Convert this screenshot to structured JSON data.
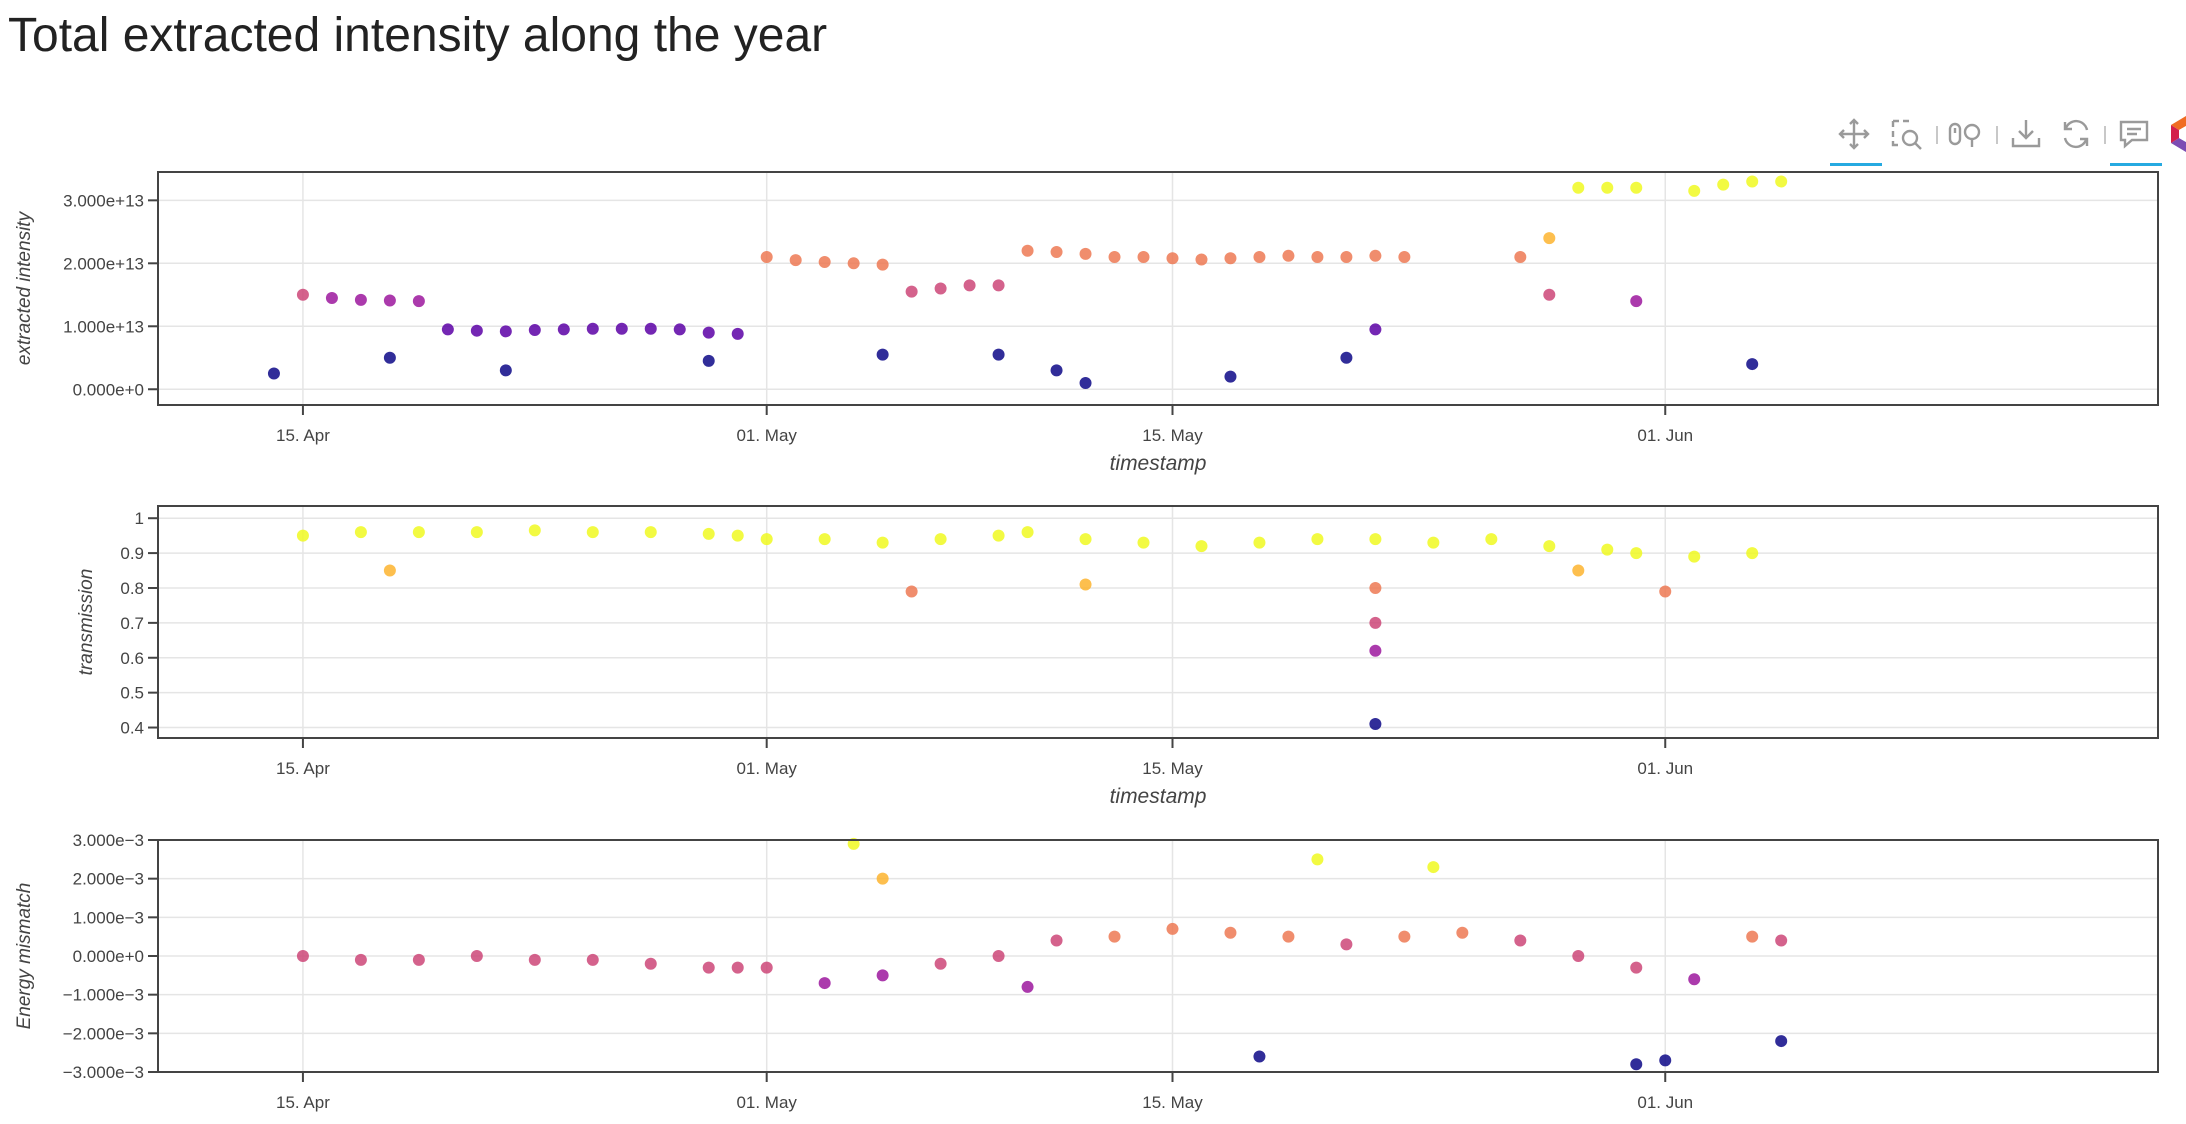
{
  "page": {
    "title": "Total extracted intensity along the year"
  },
  "toolbar": {
    "tools": [
      {
        "name": "pan-tool-icon",
        "label": "Pan",
        "active": true
      },
      {
        "name": "box-zoom-tool-icon",
        "label": "Box Zoom",
        "active": false
      },
      {
        "name": "wheel-zoom-tool-icon",
        "label": "Wheel Zoom",
        "active": false
      },
      {
        "name": "save-tool-icon",
        "label": "Save",
        "active": false
      },
      {
        "name": "reset-tool-icon",
        "label": "Reset",
        "active": false
      },
      {
        "name": "hover-tool-icon",
        "label": "Hover",
        "active": true
      },
      {
        "name": "bokeh-logo-icon",
        "label": "Bokeh",
        "active": false
      }
    ]
  },
  "colors": {
    "grid": "#e5e5e5",
    "axis": "#444444",
    "palette": [
      "#0d0887",
      "#5c01a6",
      "#9c179e",
      "#cc4778",
      "#ed7953",
      "#fdb42f",
      "#f0f921"
    ]
  },
  "chart_data": [
    {
      "type": "scatter",
      "xlabel": "timestamp",
      "ylabel": "extracted intensity",
      "x_ticks": [
        "15. Apr",
        "01. May",
        "15. May",
        "01. Jun"
      ],
      "y_ticks": [
        "0.000e+0",
        "1.000e+13",
        "2.000e+13",
        "3.000e+13"
      ],
      "y_tick_values": [
        0,
        10000000000000.0,
        20000000000000.0,
        30000000000000.0
      ],
      "ylim": [
        -2500000000000.0,
        34500000000000.0
      ],
      "xlim": [
        "2023-04-10",
        "2023-06-18"
      ],
      "series": [
        {
          "points": [
            [
              "04-15",
              15000000000000.0
            ],
            [
              "04-16",
              14500000000000.0
            ],
            [
              "04-17",
              14200000000000.0
            ],
            [
              "04-18",
              14100000000000.0
            ],
            [
              "04-19",
              14000000000000.0
            ],
            [
              "04-20",
              9500000000000.0
            ],
            [
              "04-21",
              9300000000000.0
            ],
            [
              "04-22",
              9200000000000.0
            ],
            [
              "04-23",
              9400000000000.0
            ],
            [
              "04-24",
              9500000000000.0
            ],
            [
              "04-25",
              9600000000000.0
            ],
            [
              "04-26",
              9600000000000.0
            ],
            [
              "04-27",
              9600000000000.0
            ],
            [
              "04-28",
              9500000000000.0
            ],
            [
              "04-29",
              9000000000000.0
            ],
            [
              "04-30",
              8800000000000.0
            ],
            [
              "05-01",
              21000000000000.0
            ],
            [
              "05-02",
              20500000000000.0
            ],
            [
              "05-03",
              20200000000000.0
            ],
            [
              "05-04",
              20000000000000.0
            ],
            [
              "05-05",
              19800000000000.0
            ],
            [
              "05-06",
              15500000000000.0
            ],
            [
              "05-07",
              16000000000000.0
            ],
            [
              "05-08",
              16500000000000.0
            ],
            [
              "05-09",
              16500000000000.0
            ],
            [
              "05-10",
              22000000000000.0
            ],
            [
              "05-11",
              21800000000000.0
            ],
            [
              "05-12",
              21500000000000.0
            ],
            [
              "05-13",
              21000000000000.0
            ],
            [
              "05-14",
              21000000000000.0
            ],
            [
              "05-15",
              20800000000000.0
            ],
            [
              "05-16",
              20600000000000.0
            ],
            [
              "05-17",
              20800000000000.0
            ],
            [
              "05-18",
              21000000000000.0
            ],
            [
              "05-19",
              21200000000000.0
            ],
            [
              "05-20",
              21000000000000.0
            ],
            [
              "05-21",
              21000000000000.0
            ],
            [
              "05-22",
              21200000000000.0
            ],
            [
              "05-23",
              21000000000000.0
            ],
            [
              "05-27",
              21000000000000.0
            ],
            [
              "05-28",
              24000000000000.0
            ],
            [
              "05-29",
              32000000000000.0
            ],
            [
              "05-30",
              32000000000000.0
            ],
            [
              "05-31",
              32000000000000.0
            ],
            [
              "06-02",
              31500000000000.0
            ],
            [
              "06-03",
              32500000000000.0
            ],
            [
              "06-04",
              33000000000000.0
            ],
            [
              "06-05",
              33000000000000.0
            ],
            [
              "04-14",
              2500000000000.0
            ],
            [
              "04-18",
              5000000000000.0
            ],
            [
              "04-22",
              3000000000000.0
            ],
            [
              "04-29",
              4500000000000.0
            ],
            [
              "05-05",
              5500000000000.0
            ],
            [
              "05-09",
              5500000000000.0
            ],
            [
              "05-11",
              3000000000000.0
            ],
            [
              "05-12",
              1000000000000.0
            ],
            [
              "05-17",
              2000000000000.0
            ],
            [
              "05-21",
              5000000000000.0
            ],
            [
              "05-22",
              9500000000000.0
            ],
            [
              "05-28",
              15000000000000.0
            ],
            [
              "05-31",
              14000000000000.0
            ],
            [
              "06-04",
              4000000000000.0
            ]
          ]
        }
      ]
    },
    {
      "type": "scatter",
      "xlabel": "timestamp",
      "ylabel": "transmission",
      "x_ticks": [
        "15. Apr",
        "01. May",
        "15. May",
        "01. Jun"
      ],
      "y_ticks": [
        "0.4",
        "0.5",
        "0.6",
        "0.7",
        "0.8",
        "0.9",
        "1"
      ],
      "y_tick_values": [
        0.4,
        0.5,
        0.6,
        0.7,
        0.8,
        0.9,
        1.0
      ],
      "ylim": [
        0.37,
        1.035
      ],
      "xlim": [
        "2023-04-10",
        "2023-06-18"
      ],
      "series": [
        {
          "points": [
            [
              "04-15",
              0.95
            ],
            [
              "04-17",
              0.96
            ],
            [
              "04-19",
              0.96
            ],
            [
              "04-21",
              0.96
            ],
            [
              "04-23",
              0.965
            ],
            [
              "04-25",
              0.96
            ],
            [
              "04-27",
              0.96
            ],
            [
              "04-29",
              0.955
            ],
            [
              "04-30",
              0.95
            ],
            [
              "05-01",
              0.94
            ],
            [
              "05-03",
              0.94
            ],
            [
              "05-05",
              0.93
            ],
            [
              "05-07",
              0.94
            ],
            [
              "05-09",
              0.95
            ],
            [
              "05-10",
              0.96
            ],
            [
              "05-12",
              0.94
            ],
            [
              "05-14",
              0.93
            ],
            [
              "05-16",
              0.92
            ],
            [
              "05-18",
              0.93
            ],
            [
              "05-20",
              0.94
            ],
            [
              "05-22",
              0.94
            ],
            [
              "05-24",
              0.93
            ],
            [
              "05-26",
              0.94
            ],
            [
              "05-28",
              0.92
            ],
            [
              "05-30",
              0.91
            ],
            [
              "05-31",
              0.9
            ],
            [
              "06-02",
              0.89
            ],
            [
              "06-04",
              0.9
            ],
            [
              "05-22",
              0.8
            ],
            [
              "05-22",
              0.7
            ],
            [
              "05-22",
              0.62
            ],
            [
              "05-22",
              0.41
            ],
            [
              "04-18",
              0.85
            ],
            [
              "05-06",
              0.79
            ],
            [
              "05-12",
              0.81
            ],
            [
              "05-29",
              0.85
            ],
            [
              "06-01",
              0.79
            ]
          ]
        }
      ]
    },
    {
      "type": "scatter",
      "xlabel": "",
      "ylabel": "Energy mismatch",
      "x_ticks": [
        "15. Apr",
        "01. May",
        "15. May",
        "01. Jun"
      ],
      "y_ticks": [
        "−3.000e−3",
        "−2.000e−3",
        "−1.000e−3",
        "0.000e+0",
        "1.000e−3",
        "2.000e−3",
        "3.000e−3"
      ],
      "y_tick_values": [
        -0.003,
        -0.002,
        -0.001,
        0,
        0.001,
        0.002,
        0.003
      ],
      "ylim": [
        -0.003,
        0.003
      ],
      "xlim": [
        "2023-04-10",
        "2023-06-18"
      ],
      "series": [
        {
          "points": [
            [
              "04-15",
              0.0
            ],
            [
              "04-17",
              -0.0001
            ],
            [
              "04-19",
              -0.0001
            ],
            [
              "04-21",
              0.0
            ],
            [
              "04-23",
              -0.0001
            ],
            [
              "04-25",
              -0.0001
            ],
            [
              "04-27",
              -0.0002
            ],
            [
              "04-29",
              -0.0003
            ],
            [
              "04-30",
              -0.0003
            ],
            [
              "05-01",
              -0.0003
            ],
            [
              "05-03",
              -0.0007
            ],
            [
              "05-05",
              -0.0005
            ],
            [
              "05-07",
              -0.0002
            ],
            [
              "05-09",
              0.0
            ],
            [
              "05-10",
              -0.0008
            ],
            [
              "05-11",
              0.0004
            ],
            [
              "05-13",
              0.0005
            ],
            [
              "05-15",
              0.0007
            ],
            [
              "05-17",
              0.0006
            ],
            [
              "05-19",
              0.0005
            ],
            [
              "05-21",
              0.0003
            ],
            [
              "05-23",
              0.0005
            ],
            [
              "05-25",
              0.0006
            ],
            [
              "05-27",
              0.0004
            ],
            [
              "05-29",
              0.0
            ],
            [
              "05-31",
              -0.0003
            ],
            [
              "06-02",
              -0.0006
            ],
            [
              "06-04",
              0.0005
            ],
            [
              "06-05",
              0.0004
            ],
            [
              "05-04",
              0.0029
            ],
            [
              "05-05",
              0.002
            ],
            [
              "05-20",
              0.0025
            ],
            [
              "05-24",
              0.0023
            ],
            [
              "05-18",
              -0.0026
            ],
            [
              "05-31",
              -0.0028
            ],
            [
              "06-01",
              -0.0027
            ],
            [
              "06-05",
              -0.0022
            ]
          ]
        }
      ]
    }
  ]
}
